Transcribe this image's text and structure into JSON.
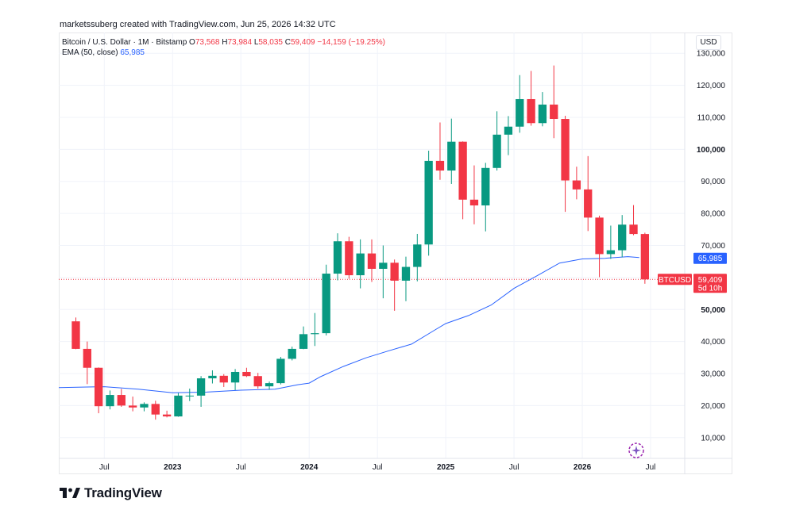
{
  "credit": "marketssuberg created with TradingView.com, Jun 25, 2026 14:32 UTC",
  "legend": {
    "symbol": "Bitcoin / U.S. Dollar · 1M · Bitstamp",
    "o_key": "O",
    "o_val": "73,568",
    "h_key": "H",
    "h_val": "73,984",
    "l_key": "L",
    "l_val": "58,035",
    "c_key": "C",
    "c_val": "59,409",
    "change": "−14,159 (−19.25%)",
    "ema_label": "EMA (50, close)",
    "ema_value": "65,985"
  },
  "currency_button": "USD",
  "brand": "TradingView",
  "colors": {
    "up": "#089981",
    "down": "#f23645",
    "ema": "#2962ff",
    "grid": "#f0f3fa",
    "price_line": "#f23645"
  },
  "chart_data": {
    "type": "candlestick",
    "symbol": "BTCUSD",
    "interval": "1M",
    "y_axis": {
      "ticks": [
        10000,
        20000,
        30000,
        40000,
        50000,
        60000,
        70000,
        80000,
        90000,
        100000,
        110000,
        120000,
        130000
      ],
      "tick_labels": [
        "10,000",
        "20,000",
        "30,000",
        "40,000",
        "50,000",
        "60,000",
        "70,000",
        "80,000",
        "90,000",
        "100,000",
        "110,000",
        "120,000",
        "130,000"
      ],
      "bold_ticks": [
        50000,
        100000
      ],
      "range": [
        3500,
        136500
      ],
      "position": "right"
    },
    "x_axis": {
      "labels": [
        {
          "text": "Jul",
          "month": "2022-07",
          "bold": false
        },
        {
          "text": "2023",
          "month": "2023-01",
          "bold": true
        },
        {
          "text": "Jul",
          "month": "2023-07",
          "bold": false
        },
        {
          "text": "2024",
          "month": "2024-01",
          "bold": true
        },
        {
          "text": "Jul",
          "month": "2024-07",
          "bold": false
        },
        {
          "text": "2025",
          "month": "2025-01",
          "bold": true
        },
        {
          "text": "Jul",
          "month": "2025-07",
          "bold": false
        },
        {
          "text": "2026",
          "month": "2026-01",
          "bold": true
        },
        {
          "text": "Jul",
          "month": "2026-07",
          "bold": false
        }
      ],
      "range": [
        "2022-03",
        "2026-10"
      ]
    },
    "candles": [
      {
        "m": "2022-04",
        "o": 46300,
        "h": 47500,
        "l": 37600,
        "c": 37700
      },
      {
        "m": "2022-05",
        "o": 37700,
        "h": 40000,
        "l": 26700,
        "c": 31800
      },
      {
        "m": "2022-06",
        "o": 31800,
        "h": 31900,
        "l": 17600,
        "c": 19800
      },
      {
        "m": "2022-07",
        "o": 19800,
        "h": 24700,
        "l": 18800,
        "c": 23300
      },
      {
        "m": "2022-08",
        "o": 23300,
        "h": 25200,
        "l": 19600,
        "c": 20000
      },
      {
        "m": "2022-09",
        "o": 20000,
        "h": 22800,
        "l": 18200,
        "c": 19400
      },
      {
        "m": "2022-10",
        "o": 19400,
        "h": 21000,
        "l": 18200,
        "c": 20500
      },
      {
        "m": "2022-11",
        "o": 20500,
        "h": 21500,
        "l": 15600,
        "c": 17200
      },
      {
        "m": "2022-12",
        "o": 17200,
        "h": 18400,
        "l": 16300,
        "c": 16600
      },
      {
        "m": "2023-01",
        "o": 16600,
        "h": 23900,
        "l": 16500,
        "c": 23100
      },
      {
        "m": "2023-02",
        "o": 23100,
        "h": 25300,
        "l": 21400,
        "c": 23100
      },
      {
        "m": "2023-03",
        "o": 23100,
        "h": 29200,
        "l": 19600,
        "c": 28500
      },
      {
        "m": "2023-04",
        "o": 28500,
        "h": 31000,
        "l": 26900,
        "c": 29300
      },
      {
        "m": "2023-05",
        "o": 29300,
        "h": 29800,
        "l": 25800,
        "c": 27200
      },
      {
        "m": "2023-06",
        "o": 27200,
        "h": 31400,
        "l": 24800,
        "c": 30500
      },
      {
        "m": "2023-07",
        "o": 30500,
        "h": 31800,
        "l": 28900,
        "c": 29200
      },
      {
        "m": "2023-08",
        "o": 29200,
        "h": 30200,
        "l": 25300,
        "c": 26000
      },
      {
        "m": "2023-09",
        "o": 26000,
        "h": 27500,
        "l": 24900,
        "c": 27000
      },
      {
        "m": "2023-10",
        "o": 27000,
        "h": 35200,
        "l": 26600,
        "c": 34600
      },
      {
        "m": "2023-11",
        "o": 34600,
        "h": 38400,
        "l": 34100,
        "c": 37700
      },
      {
        "m": "2023-12",
        "o": 37700,
        "h": 44700,
        "l": 37600,
        "c": 42300
      },
      {
        "m": "2024-01",
        "o": 42300,
        "h": 48900,
        "l": 38600,
        "c": 42600
      },
      {
        "m": "2024-02",
        "o": 42600,
        "h": 64000,
        "l": 41900,
        "c": 61200
      },
      {
        "m": "2024-03",
        "o": 61200,
        "h": 73800,
        "l": 59100,
        "c": 71300
      },
      {
        "m": "2024-04",
        "o": 71300,
        "h": 72700,
        "l": 59600,
        "c": 60700
      },
      {
        "m": "2024-05",
        "o": 60700,
        "h": 71900,
        "l": 56600,
        "c": 67500
      },
      {
        "m": "2024-06",
        "o": 67500,
        "h": 71900,
        "l": 58600,
        "c": 62700
      },
      {
        "m": "2024-07",
        "o": 62700,
        "h": 70000,
        "l": 53500,
        "c": 64600
      },
      {
        "m": "2024-08",
        "o": 64600,
        "h": 65600,
        "l": 49600,
        "c": 59000
      },
      {
        "m": "2024-09",
        "o": 59000,
        "h": 66500,
        "l": 52600,
        "c": 63300
      },
      {
        "m": "2024-10",
        "o": 63300,
        "h": 73600,
        "l": 58800,
        "c": 70300
      },
      {
        "m": "2024-11",
        "o": 70300,
        "h": 99600,
        "l": 66800,
        "c": 96400
      },
      {
        "m": "2024-12",
        "o": 96400,
        "h": 108400,
        "l": 90500,
        "c": 93400
      },
      {
        "m": "2025-01",
        "o": 93400,
        "h": 109600,
        "l": 89200,
        "c": 102400
      },
      {
        "m": "2025-02",
        "o": 102400,
        "h": 102500,
        "l": 78200,
        "c": 84300
      },
      {
        "m": "2025-03",
        "o": 84300,
        "h": 95000,
        "l": 76600,
        "c": 82500
      },
      {
        "m": "2025-04",
        "o": 82500,
        "h": 95800,
        "l": 74400,
        "c": 94200
      },
      {
        "m": "2025-05",
        "o": 94200,
        "h": 111900,
        "l": 93400,
        "c": 104600
      },
      {
        "m": "2025-06",
        "o": 104600,
        "h": 110400,
        "l": 98200,
        "c": 107100
      },
      {
        "m": "2025-07",
        "o": 107100,
        "h": 123200,
        "l": 105200,
        "c": 115700
      },
      {
        "m": "2025-08",
        "o": 115700,
        "h": 124500,
        "l": 107400,
        "c": 108200
      },
      {
        "m": "2025-09",
        "o": 108200,
        "h": 117900,
        "l": 107200,
        "c": 114000
      },
      {
        "m": "2025-10",
        "o": 114000,
        "h": 126200,
        "l": 103500,
        "c": 109500
      },
      {
        "m": "2025-11",
        "o": 109500,
        "h": 110500,
        "l": 80500,
        "c": 90300
      },
      {
        "m": "2025-12",
        "o": 90300,
        "h": 94600,
        "l": 84400,
        "c": 87500
      },
      {
        "m": "2026-01",
        "o": 87500,
        "h": 97900,
        "l": 74500,
        "c": 78700
      },
      {
        "m": "2026-02",
        "o": 78700,
        "h": 79300,
        "l": 60100,
        "c": 67300
      },
      {
        "m": "2026-03",
        "o": 67300,
        "h": 76200,
        "l": 65800,
        "c": 68500
      },
      {
        "m": "2026-04",
        "o": 68500,
        "h": 79500,
        "l": 66300,
        "c": 76500
      },
      {
        "m": "2026-05",
        "o": 76500,
        "h": 82600,
        "l": 73200,
        "c": 73568
      },
      {
        "m": "2026-06",
        "o": 73568,
        "h": 73984,
        "l": 58035,
        "c": 59409
      }
    ],
    "ema_series": {
      "name": "EMA (50, close)",
      "points": [
        {
          "m": "2022-03",
          "v": 25600
        },
        {
          "m": "2022-07",
          "v": 25900
        },
        {
          "m": "2022-10",
          "v": 25100
        },
        {
          "m": "2023-01",
          "v": 24000
        },
        {
          "m": "2023-04",
          "v": 24200
        },
        {
          "m": "2023-07",
          "v": 24800
        },
        {
          "m": "2023-10",
          "v": 25100
        },
        {
          "m": "2023-12",
          "v": 26500
        },
        {
          "m": "2024-01",
          "v": 27000
        },
        {
          "m": "2024-02",
          "v": 29000
        },
        {
          "m": "2024-04",
          "v": 32200
        },
        {
          "m": "2024-06",
          "v": 34900
        },
        {
          "m": "2024-08",
          "v": 37100
        },
        {
          "m": "2024-10",
          "v": 39200
        },
        {
          "m": "2024-12",
          "v": 43500
        },
        {
          "m": "2025-01",
          "v": 45600
        },
        {
          "m": "2025-03",
          "v": 48100
        },
        {
          "m": "2025-05",
          "v": 51400
        },
        {
          "m": "2025-07",
          "v": 56600
        },
        {
          "m": "2025-09",
          "v": 60500
        },
        {
          "m": "2025-11",
          "v": 64500
        },
        {
          "m": "2026-01",
          "v": 65800
        },
        {
          "m": "2026-03",
          "v": 66000
        },
        {
          "m": "2026-05",
          "v": 66500
        },
        {
          "m": "2026-06",
          "v": 66200
        }
      ]
    },
    "markers": {
      "ema_label": "65,985",
      "ema_value": 65985,
      "symbol_tag": "BTCUSD",
      "last_price_label": "59,409",
      "last_price": 59409,
      "countdown": "5d 10h"
    }
  }
}
